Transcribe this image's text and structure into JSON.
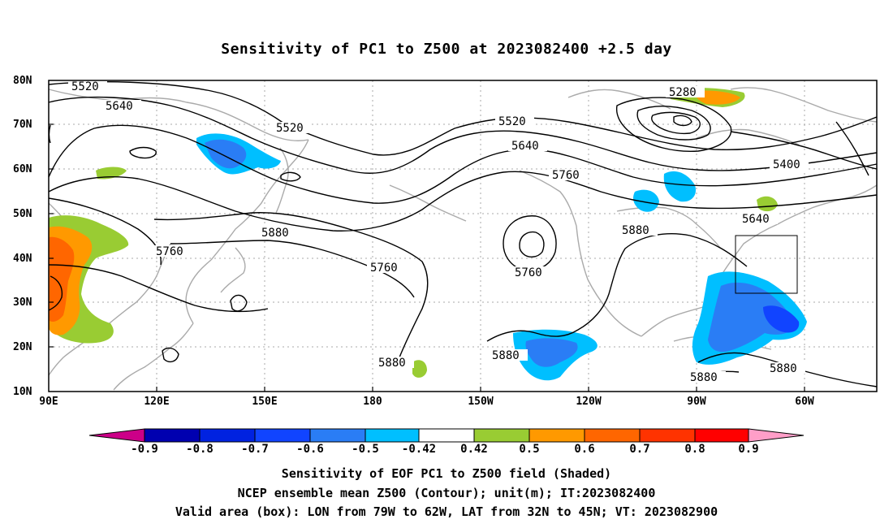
{
  "title": "Sensitivity of PC1 to Z500 at 2023082400 +2.5 day",
  "lat_labels": [
    "80N",
    "70N",
    "60N",
    "50N",
    "40N",
    "30N",
    "20N",
    "10N"
  ],
  "lon_labels": [
    "90E",
    "120E",
    "150E",
    "180",
    "150W",
    "120W",
    "90W",
    "60W"
  ],
  "contour_labels": [
    "5520",
    "5640",
    "5520",
    "5280",
    "5520",
    "5640",
    "5760",
    "5400",
    "5640",
    "5880",
    "5760",
    "5760",
    "5760",
    "5880",
    "5880",
    "5880",
    "5880",
    "5880"
  ],
  "colorbar": {
    "labels": [
      "-0.9",
      "-0.8",
      "-0.7",
      "-0.6",
      "-0.5",
      "-0.42",
      "0.42",
      "0.5",
      "0.6",
      "0.7",
      "0.8",
      "0.9"
    ],
    "colors": [
      "#cc0088",
      "#0000b0",
      "#0022e0",
      "#1144ff",
      "#2a7df5",
      "#00bfff",
      "#ffffff",
      "#99cc33",
      "#ff9900",
      "#ff6600",
      "#ff3300",
      "#ff0000",
      "#ff9ec8"
    ]
  },
  "captions": [
    "Sensitivity of EOF PC1 to Z500 field (Shaded)",
    "NCEP ensemble mean Z500 (Contour); unit(m); IT:2023082400",
    "Valid area (box): LON from 79W to 62W, LAT from 32N to 45N; VT: 2023082900"
  ]
}
